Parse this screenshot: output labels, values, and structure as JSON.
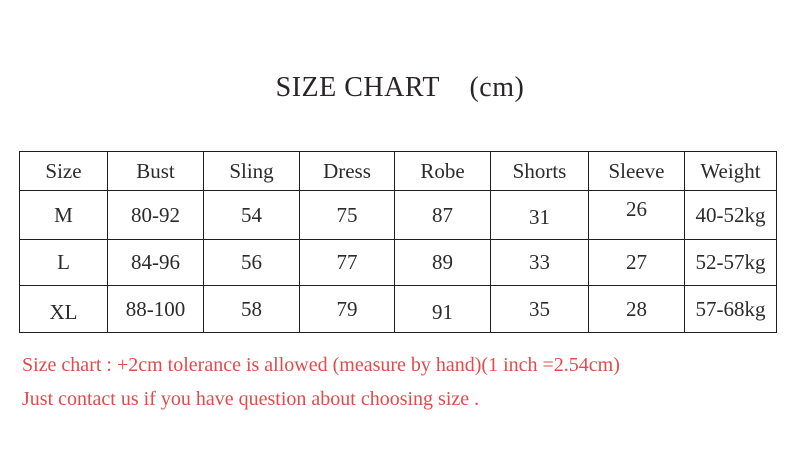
{
  "title": "SIZE CHART    (cm)",
  "table": {
    "columns": [
      "Size",
      "Bust",
      "Sling",
      "Dress",
      "Robe",
      "Shorts",
      "Sleeve",
      "Weight"
    ],
    "rows": [
      [
        "M",
        "80-92",
        "54",
        "75",
        "87",
        "31",
        "26",
        "40-52kg"
      ],
      [
        "L",
        "84-96",
        "56",
        "77",
        "89",
        "33",
        "27",
        "52-57kg"
      ],
      [
        "XL",
        "88-100",
        "58",
        "79",
        "91",
        "35",
        "28",
        "57-68kg"
      ]
    ]
  },
  "notes": [
    "Size chart : +2cm tolerance is allowed (measure by hand)(1 inch =2.54cm)",
    "Just contact us if you have question about choosing size ."
  ],
  "colors": {
    "note_red": "#e14b4b",
    "table_text": "#2b2b2b",
    "border": "#1f1f1f",
    "background": "#ffffff"
  }
}
